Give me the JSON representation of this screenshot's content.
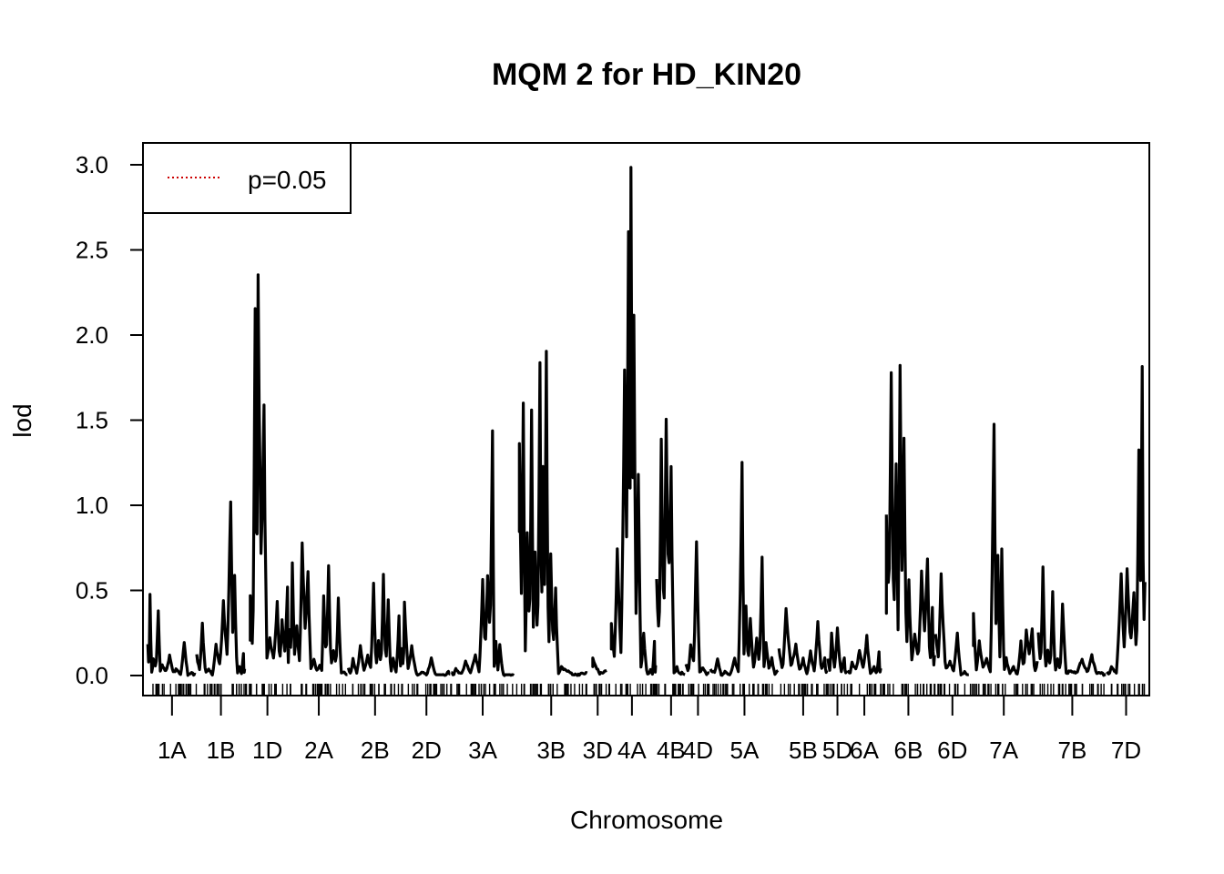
{
  "chart_data": {
    "type": "line",
    "title": "MQM 2 for HD_KIN20",
    "xlabel": "Chromosome",
    "ylabel": "lod",
    "ylim": [
      0,
      3.0
    ],
    "yticks": [
      "0.0",
      "0.5",
      "1.0",
      "1.5",
      "2.0",
      "2.5",
      "3.0"
    ],
    "grid": false,
    "legend": {
      "position": "top-left",
      "entries": [
        {
          "label": "p=0.05",
          "color": "#cc0000",
          "style": "dotted"
        }
      ]
    },
    "line_color": "#000000",
    "chromosomes": [
      {
        "name": "1A",
        "start": 0,
        "end": 10,
        "peaks": [
          [
            0.5,
            0.47
          ],
          [
            1.2,
            0.1
          ],
          [
            2.2,
            0.38
          ],
          [
            3.0,
            0.06
          ],
          [
            4.5,
            0.12
          ],
          [
            6.0,
            0.04
          ],
          [
            7.5,
            0.2
          ],
          [
            9.0,
            0.02
          ]
        ]
      },
      {
        "name": "1B",
        "start": 10,
        "end": 20,
        "peaks": [
          [
            1.2,
            0.3
          ],
          [
            2.5,
            0.04
          ],
          [
            4.0,
            0.18
          ],
          [
            5.5,
            0.43
          ],
          [
            7.0,
            1.05
          ],
          [
            7.8,
            0.6
          ],
          [
            8.8,
            0.05
          ],
          [
            9.6,
            0.13
          ]
        ]
      },
      {
        "name": "1D",
        "start": 20,
        "end": 29,
        "gap_start": true,
        "peaks": [
          [
            1.0,
            0.48
          ],
          [
            2.0,
            2.18
          ],
          [
            2.6,
            2.31
          ],
          [
            3.8,
            1.55
          ],
          [
            5.0,
            0.22
          ],
          [
            6.5,
            0.43
          ],
          [
            7.5,
            0.32
          ],
          [
            8.6,
            0.52
          ]
        ]
      },
      {
        "name": "2A",
        "start": 29,
        "end": 41,
        "peaks": [
          [
            0.6,
            0.68
          ],
          [
            1.5,
            0.3
          ],
          [
            2.6,
            0.8
          ],
          [
            3.8,
            0.6
          ],
          [
            5.0,
            0.1
          ],
          [
            6.2,
            0.06
          ],
          [
            7.0,
            0.48
          ],
          [
            8.0,
            0.65
          ],
          [
            9.0,
            0.15
          ],
          [
            10.0,
            0.45
          ],
          [
            11.2,
            0.02
          ]
        ]
      },
      {
        "name": "2B",
        "start": 41,
        "end": 52,
        "peaks": [
          [
            1.0,
            0.1
          ],
          [
            2.5,
            0.18
          ],
          [
            4.0,
            0.12
          ],
          [
            5.2,
            0.55
          ],
          [
            6.2,
            0.2
          ],
          [
            7.2,
            0.58
          ],
          [
            8.2,
            0.45
          ],
          [
            9.2,
            0.1
          ],
          [
            10.4,
            0.35
          ]
        ]
      },
      {
        "name": "2D",
        "start": 52,
        "end": 62,
        "peaks": [
          [
            0.5,
            0.43
          ],
          [
            2.0,
            0.18
          ],
          [
            4.0,
            0.02
          ],
          [
            6.0,
            0.1
          ],
          [
            8.0,
            0.0
          ],
          [
            9.5,
            0.03
          ]
        ]
      },
      {
        "name": "3A",
        "start": 62,
        "end": 75,
        "peaks": [
          [
            1.0,
            0.04
          ],
          [
            3.0,
            0.08
          ],
          [
            5.0,
            0.12
          ],
          [
            6.5,
            0.55
          ],
          [
            7.5,
            0.6
          ],
          [
            8.5,
            1.48
          ],
          [
            9.2,
            0.2
          ],
          [
            10.0,
            0.18
          ],
          [
            11.5,
            0.0
          ]
        ]
      },
      {
        "name": "3B",
        "start": 75,
        "end": 90,
        "gap_start": true,
        "peaks": [
          [
            1.0,
            1.33
          ],
          [
            1.8,
            1.6
          ],
          [
            2.6,
            0.85
          ],
          [
            3.5,
            1.52
          ],
          [
            4.2,
            0.72
          ],
          [
            5.2,
            1.85
          ],
          [
            5.8,
            1.25
          ],
          [
            6.5,
            1.87
          ],
          [
            7.4,
            0.72
          ],
          [
            8.4,
            0.5
          ],
          [
            9.6,
            0.05
          ]
        ]
      },
      {
        "name": "3D",
        "start": 90,
        "end": 94,
        "gap_start": true,
        "peaks": [
          [
            1.0,
            0.1
          ]
        ]
      },
      {
        "name": "4A",
        "start": 94,
        "end": 104,
        "gap_start": true,
        "peaks": [
          [
            0.8,
            0.3
          ],
          [
            2.0,
            0.75
          ],
          [
            3.5,
            1.78
          ],
          [
            4.3,
            2.6
          ],
          [
            4.8,
            3.0
          ],
          [
            5.4,
            2.1
          ],
          [
            6.3,
            1.2
          ],
          [
            7.4,
            0.25
          ],
          [
            8.8,
            0.03
          ],
          [
            9.6,
            0.2
          ]
        ]
      },
      {
        "name": "4B",
        "start": 104,
        "end": 110,
        "peaks": [
          [
            1.0,
            1.4
          ],
          [
            2.0,
            1.47
          ],
          [
            3.0,
            1.2
          ],
          [
            4.2,
            0.05
          ],
          [
            5.2,
            0.02
          ]
        ]
      },
      {
        "name": "4D",
        "start": 110,
        "end": 115,
        "peaks": [
          [
            1.0,
            0.18
          ],
          [
            2.2,
            0.79
          ],
          [
            3.5,
            0.05
          ]
        ]
      },
      {
        "name": "5A",
        "start": 115,
        "end": 129,
        "peaks": [
          [
            1.5,
            0.1
          ],
          [
            3.0,
            0.02
          ],
          [
            5.0,
            0.1
          ],
          [
            6.5,
            1.22
          ],
          [
            7.3,
            0.42
          ],
          [
            8.2,
            0.34
          ],
          [
            9.5,
            0.22
          ],
          [
            10.6,
            0.69
          ],
          [
            11.4,
            0.2
          ],
          [
            12.6,
            0.1
          ]
        ]
      },
      {
        "name": "5B",
        "start": 129,
        "end": 139,
        "peaks": [
          [
            1.5,
            0.4
          ],
          [
            3.5,
            0.18
          ],
          [
            5.0,
            0.1
          ],
          [
            6.5,
            0.14
          ],
          [
            8.0,
            0.32
          ],
          [
            9.4,
            0.1
          ]
        ]
      },
      {
        "name": "5D",
        "start": 139,
        "end": 143,
        "peaks": [
          [
            0.8,
            0.25
          ],
          [
            2.0,
            0.28
          ],
          [
            3.4,
            0.1
          ]
        ]
      },
      {
        "name": "6A",
        "start": 143,
        "end": 150,
        "peaks": [
          [
            1.0,
            0.08
          ],
          [
            2.5,
            0.15
          ],
          [
            4.0,
            0.23
          ],
          [
            5.5,
            0.05
          ],
          [
            6.5,
            0.14
          ]
        ]
      },
      {
        "name": "6B",
        "start": 150,
        "end": 161,
        "gap_start": true,
        "peaks": [
          [
            1.0,
            0.95
          ],
          [
            2.0,
            1.82
          ],
          [
            3.0,
            1.25
          ],
          [
            3.8,
            1.87
          ],
          [
            4.6,
            1.4
          ],
          [
            5.6,
            0.55
          ],
          [
            6.8,
            0.25
          ],
          [
            8.2,
            0.6
          ],
          [
            9.4,
            0.7
          ],
          [
            10.4,
            0.4
          ]
        ]
      },
      {
        "name": "6D",
        "start": 161,
        "end": 168,
        "peaks": [
          [
            1.2,
            0.6
          ],
          [
            3.0,
            0.08
          ],
          [
            4.5,
            0.25
          ],
          [
            6.0,
            0.02
          ]
        ]
      },
      {
        "name": "7A",
        "start": 168,
        "end": 182,
        "gap_start": true,
        "peaks": [
          [
            0.8,
            0.36
          ],
          [
            2.0,
            0.2
          ],
          [
            3.5,
            0.1
          ],
          [
            5.0,
            1.45
          ],
          [
            5.8,
            0.72
          ],
          [
            6.6,
            0.76
          ],
          [
            7.5,
            0.1
          ],
          [
            9.0,
            0.05
          ],
          [
            10.5,
            0.2
          ],
          [
            11.6,
            0.27
          ],
          [
            12.8,
            0.28
          ]
        ]
      },
      {
        "name": "7B",
        "start": 182,
        "end": 196,
        "peaks": [
          [
            1.0,
            0.62
          ],
          [
            2.0,
            0.15
          ],
          [
            3.0,
            0.5
          ],
          [
            4.0,
            0.1
          ],
          [
            5.0,
            0.43
          ],
          [
            6.5,
            0.03
          ],
          [
            9.0,
            0.1
          ],
          [
            11.0,
            0.12
          ],
          [
            13.0,
            0.02
          ]
        ]
      },
      {
        "name": "7D",
        "start": 196,
        "end": 204,
        "peaks": [
          [
            1.0,
            0.05
          ],
          [
            3.0,
            0.6
          ],
          [
            4.2,
            0.64
          ],
          [
            5.6,
            0.5
          ],
          [
            6.6,
            1.3
          ],
          [
            7.3,
            1.83
          ]
        ]
      }
    ]
  }
}
